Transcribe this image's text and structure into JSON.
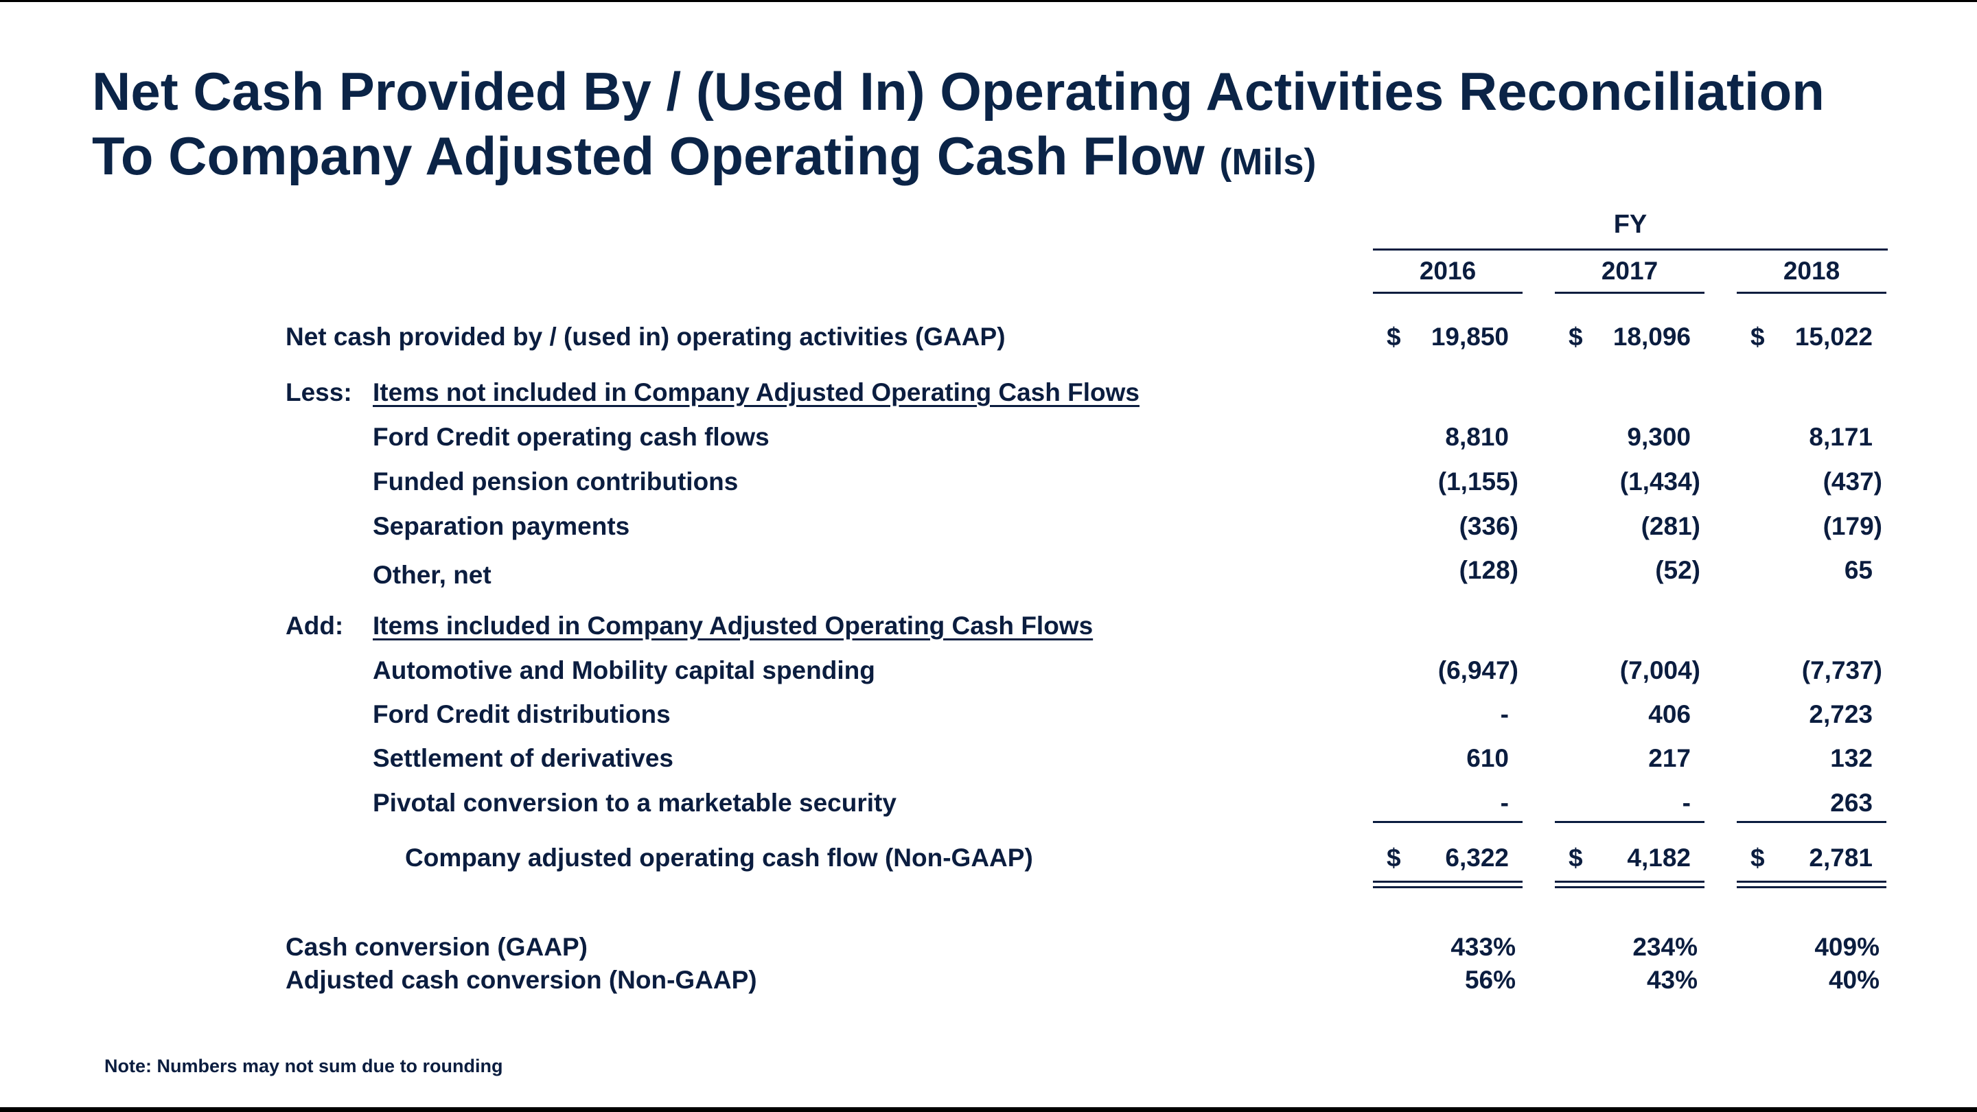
{
  "title": {
    "line1": "Net Cash Provided By / (Used In) Operating Activities Reconciliation",
    "line2": "To Company Adjusted Operating Cash Flow",
    "unit": "(Mils)"
  },
  "header": {
    "period": "FY",
    "years": [
      "2016",
      "2017",
      "2018"
    ]
  },
  "rows": {
    "gaap": {
      "label": "Net cash provided by / (used in) operating activities (GAAP)",
      "currency": "$",
      "values": [
        "19,850",
        "18,096",
        "15,022"
      ]
    },
    "less": {
      "prefix": "Less:",
      "label": "Items not included in Company Adjusted Operating Cash Flows"
    },
    "ford_credit_ocf": {
      "label": "Ford Credit operating cash flows",
      "values": [
        "8,810",
        "9,300",
        "8,171"
      ]
    },
    "pension": {
      "label": "Funded pension contributions",
      "values": [
        "(1,155)",
        "(1,434)",
        "(437)"
      ]
    },
    "separation": {
      "label": "Separation payments",
      "values": [
        "(336)",
        "(281)",
        "(179)"
      ]
    },
    "other": {
      "label": "Other, net",
      "values": [
        "(128)",
        "(52)",
        "65"
      ]
    },
    "add": {
      "prefix": "Add:",
      "label": "Items included in Company Adjusted Operating Cash Flows"
    },
    "capex": {
      "label": "Automotive and Mobility capital spending",
      "values": [
        "(6,947)",
        "(7,004)",
        "(7,737)"
      ]
    },
    "fc_dist": {
      "label": "Ford Credit distributions",
      "values": [
        "-",
        "406",
        "2,723"
      ]
    },
    "derivatives": {
      "label": "Settlement of derivatives",
      "values": [
        "610",
        "217",
        "132"
      ]
    },
    "pivotal": {
      "label": "Pivotal conversion to a marketable security",
      "values": [
        "-",
        "-",
        "263"
      ]
    },
    "adjusted": {
      "label": "Company adjusted operating cash flow (Non-GAAP)",
      "currency": "$",
      "values": [
        "6,322",
        "4,182",
        "2,781"
      ]
    },
    "cash_conv": {
      "label": "Cash conversion (GAAP)",
      "values": [
        "433%",
        "234%",
        "409%"
      ]
    },
    "adj_cash_conv": {
      "label": "Adjusted cash conversion (Non-GAAP)",
      "values": [
        "56%",
        "43%",
        "40%"
      ]
    }
  },
  "note": "Note: Numbers may not sum due to rounding"
}
